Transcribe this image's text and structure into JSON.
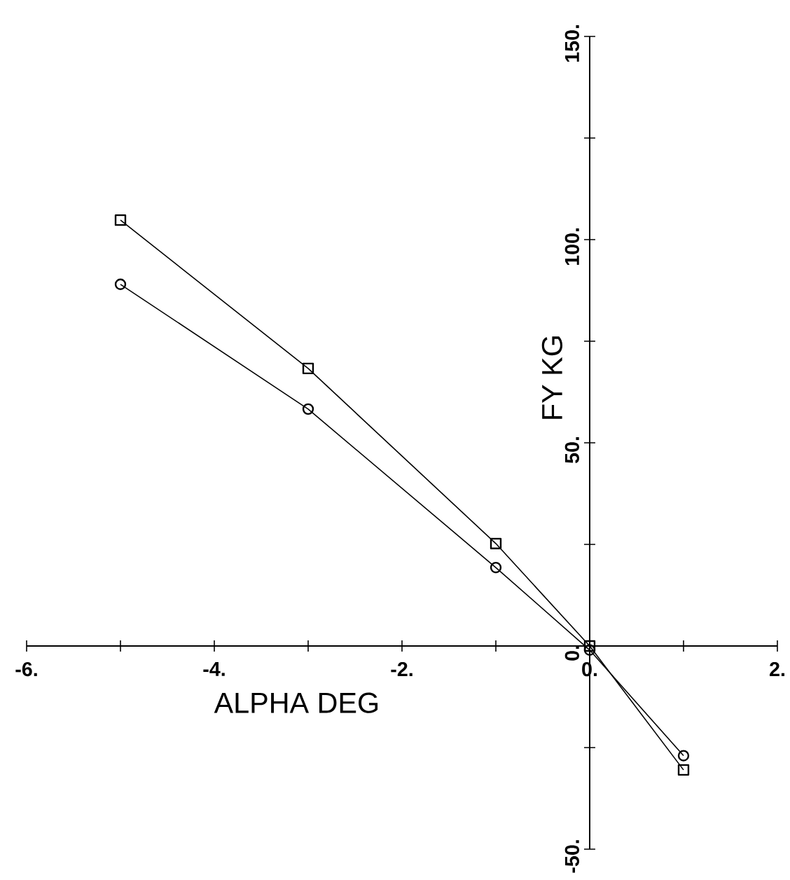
{
  "chart_data": {
    "type": "line",
    "xlabel": "ALPHA DEG",
    "ylabel": "FY KG",
    "x": [
      -5,
      -3,
      -1,
      0,
      1
    ],
    "series": [
      {
        "color": "#000000",
        "marker": "square",
        "values": [
          104.8,
          68.3,
          25.2,
          0,
          -30.5
        ]
      },
      {
        "color": "#000000",
        "marker": "circle",
        "values": [
          89,
          58.3,
          19.3,
          -1,
          -27
        ]
      }
    ],
    "xlim": [
      -6,
      2
    ],
    "xticks": [
      {
        "value": -6,
        "label": "-6."
      },
      {
        "value": -5,
        "label": null
      },
      {
        "value": -4,
        "label": "-4."
      },
      {
        "value": -3,
        "label": null
      },
      {
        "value": -2,
        "label": "-2."
      },
      {
        "value": -1,
        "label": null
      },
      {
        "value": 0,
        "label": "0."
      },
      {
        "value": 1,
        "label": null
      },
      {
        "value": 2,
        "label": "2."
      }
    ],
    "ylim": [
      -50,
      150
    ],
    "yticks": [
      {
        "value": -50,
        "label": "-50."
      },
      {
        "value": -25,
        "label": null
      },
      {
        "value": 0,
        "label": "0."
      },
      {
        "value": 25,
        "label": null
      },
      {
        "value": 50,
        "label": "50."
      },
      {
        "value": 75,
        "label": null
      },
      {
        "value": 100,
        "label": "100."
      },
      {
        "value": 125,
        "label": null
      },
      {
        "value": 150,
        "label": "150."
      }
    ],
    "grid": false,
    "legend": false,
    "line_style": "solid"
  }
}
